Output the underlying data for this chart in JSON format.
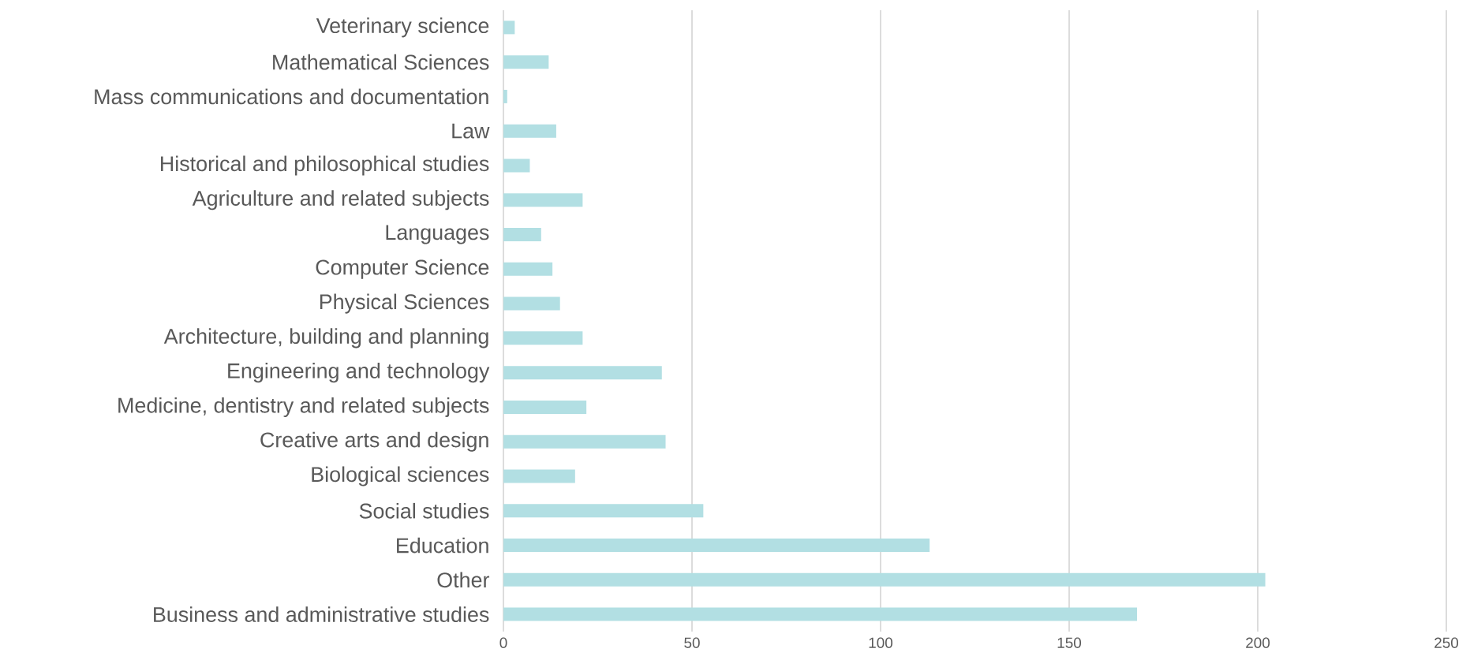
{
  "chart_data": {
    "type": "bar",
    "orientation": "horizontal",
    "categories": [
      "Veterinary science",
      "Mathematical Sciences",
      "Mass communications and documentation",
      "Law",
      "Historical and philosophical studies",
      "Agriculture and related subjects",
      "Languages",
      "Computer Science",
      "Physical Sciences",
      "Architecture, building and planning",
      "Engineering and technology",
      "Medicine, dentistry and related subjects",
      "Creative arts and design",
      "Biological sciences",
      "Social studies",
      "Education",
      "Other",
      "Business and administrative studies"
    ],
    "values": [
      3,
      12,
      1,
      14,
      7,
      21,
      10,
      13,
      15,
      21,
      42,
      22,
      43,
      19,
      53,
      113,
      202,
      168
    ],
    "color": "#b2dfe3",
    "xlim": [
      0,
      250
    ],
    "xticks": [
      0,
      50,
      100,
      150,
      200,
      250
    ],
    "grid": "x"
  }
}
